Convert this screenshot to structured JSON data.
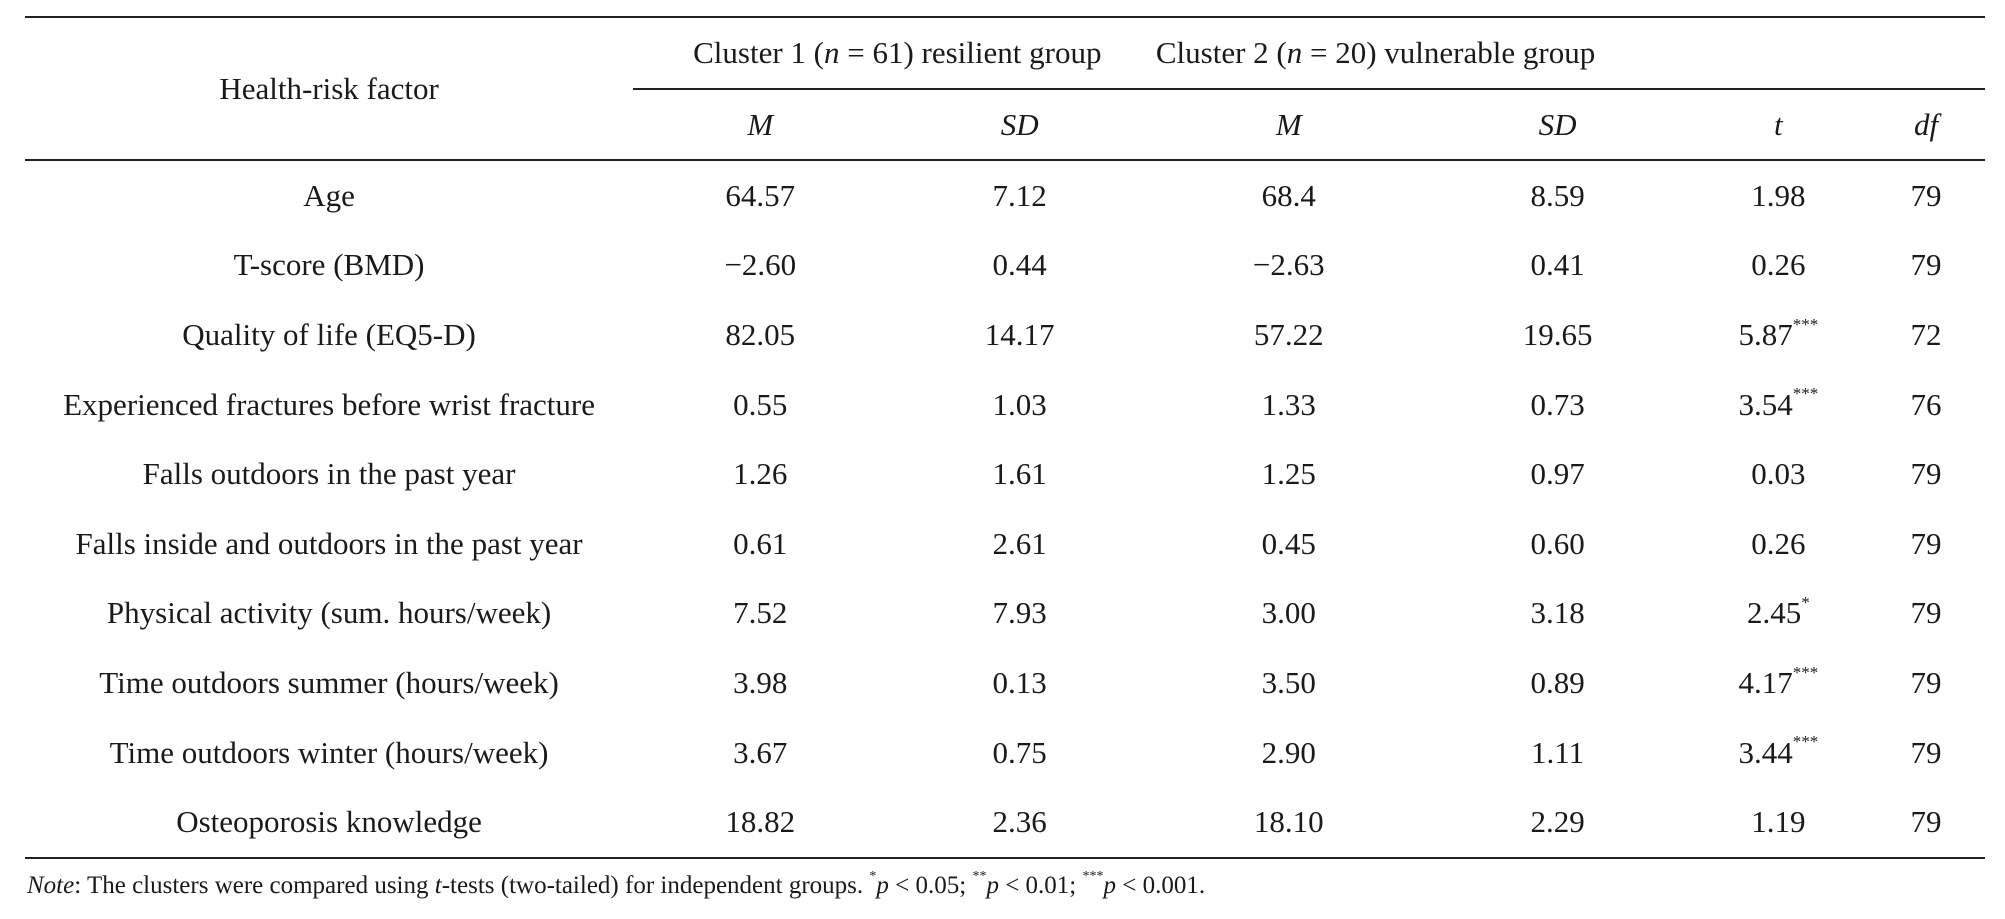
{
  "header": {
    "factor_label": "Health-risk factor",
    "cluster1": {
      "prefix": "Cluster 1 (",
      "n": "n",
      "rest": " = 61) resilient group"
    },
    "cluster2": {
      "prefix": "Cluster 2 (",
      "n": "n",
      "rest": " = 20) vulnerable group"
    },
    "columns": [
      "M",
      "SD",
      "M",
      "SD",
      "t",
      "df"
    ]
  },
  "rows": [
    {
      "factor": "Age",
      "m1": "64.57",
      "sd1": "7.12",
      "m2": "68.4",
      "sd2": "8.59",
      "t": "1.98",
      "sig": "",
      "df": "79"
    },
    {
      "factor": "T-score (BMD)",
      "m1": "−2.60",
      "sd1": "0.44",
      "m2": "−2.63",
      "sd2": "0.41",
      "t": "0.26",
      "sig": "",
      "df": "79"
    },
    {
      "factor": "Quality of life (EQ5-D)",
      "m1": "82.05",
      "sd1": "14.17",
      "m2": "57.22",
      "sd2": "19.65",
      "t": "5.87",
      "sig": "***",
      "df": "72"
    },
    {
      "factor": "Experienced fractures before wrist fracture",
      "m1": "0.55",
      "sd1": "1.03",
      "m2": "1.33",
      "sd2": "0.73",
      "t": "3.54",
      "sig": "***",
      "df": "76"
    },
    {
      "factor": "Falls outdoors in the past year",
      "m1": "1.26",
      "sd1": "1.61",
      "m2": "1.25",
      "sd2": "0.97",
      "t": "0.03",
      "sig": "",
      "df": "79"
    },
    {
      "factor": "Falls inside and outdoors in the past year",
      "m1": "0.61",
      "sd1": "2.61",
      "m2": "0.45",
      "sd2": "0.60",
      "t": "0.26",
      "sig": "",
      "df": "79"
    },
    {
      "factor": "Physical activity (sum. hours/week)",
      "m1": "7.52",
      "sd1": "7.93",
      "m2": "3.00",
      "sd2": "3.18",
      "t": "2.45",
      "sig": "*",
      "df": "79"
    },
    {
      "factor": "Time outdoors summer (hours/week)",
      "m1": "3.98",
      "sd1": "0.13",
      "m2": "3.50",
      "sd2": "0.89",
      "t": "4.17",
      "sig": "***",
      "df": "79"
    },
    {
      "factor": "Time outdoors winter (hours/week)",
      "m1": "3.67",
      "sd1": "0.75",
      "m2": "2.90",
      "sd2": "1.11",
      "t": "3.44",
      "sig": "***",
      "df": "79"
    },
    {
      "factor": "Osteoporosis knowledge",
      "m1": "18.82",
      "sd1": "2.36",
      "m2": "18.10",
      "sd2": "2.29",
      "t": "1.19",
      "sig": "",
      "df": "79"
    }
  ],
  "note": {
    "label": "Note",
    "text1": ": The clusters were compared using ",
    "t": "t",
    "text2": "-tests (two-tailed) for independent groups. ",
    "s1": "*",
    "p1": "p",
    "v1": " < 0.05; ",
    "s2": "**",
    "p2": "p",
    "v2": " < 0.01; ",
    "s3": "***",
    "p3": "p",
    "v3": " < 0.001."
  }
}
